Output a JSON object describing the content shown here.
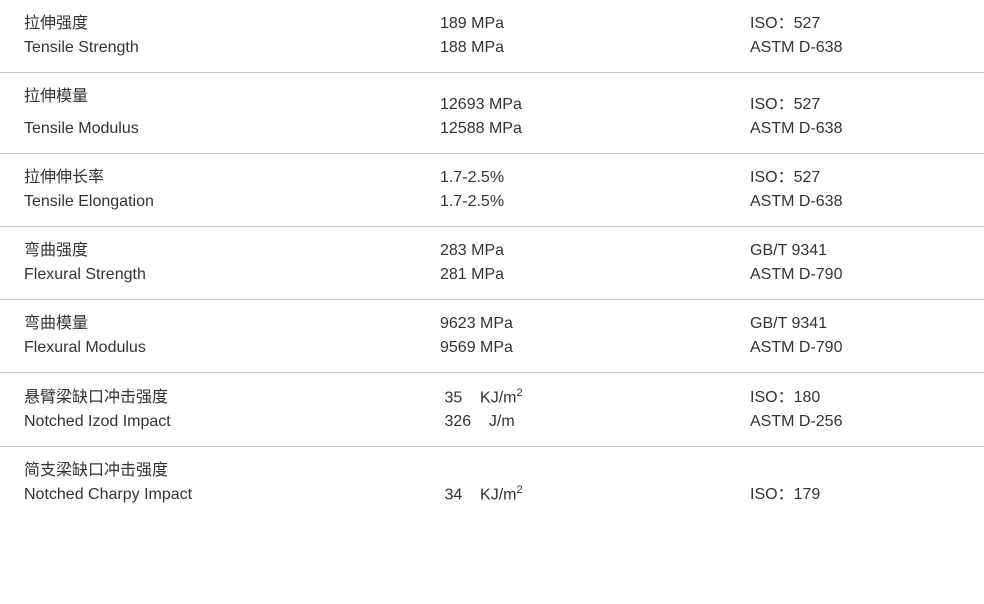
{
  "rows": [
    {
      "label_cn": "拉伸强度",
      "label_en": "Tensile Strength",
      "gap_after_cn": false,
      "values": [
        "189 MPa",
        "188 MPa"
      ],
      "standards": [
        "ISO：527",
        "ASTM D-638"
      ]
    },
    {
      "label_cn": "拉伸模量",
      "label_en": "Tensile Modulus",
      "gap_after_cn": true,
      "values": [
        "12693 MPa",
        "12588 MPa"
      ],
      "standards": [
        "ISO：527",
        "ASTM D-638"
      ]
    },
    {
      "label_cn": "拉伸伸长率",
      "label_en": "Tensile Elongation",
      "gap_after_cn": false,
      "values": [
        "1.7-2.5%",
        "1.7-2.5%"
      ],
      "standards": [
        "ISO：527",
        "ASTM D-638"
      ]
    },
    {
      "label_cn": "弯曲强度",
      "label_en": "Flexural Strength",
      "gap_after_cn": false,
      "values": [
        "283 MPa",
        "281 MPa"
      ],
      "standards": [
        "GB/T 9341",
        "ASTM D-790"
      ]
    },
    {
      "label_cn": "弯曲模量",
      "label_en": "Flexural Modulus",
      "gap_after_cn": false,
      "values": [
        "9623 MPa",
        "9569 MPa"
      ],
      "standards": [
        "GB/T 9341",
        "ASTM D-790"
      ]
    },
    {
      "label_cn": "悬臂梁缺口冲击强度",
      "label_en": "Notched Izod Impact",
      "gap_after_cn": false,
      "values_html": [
        "&nbsp;35&nbsp;&nbsp;&nbsp;&nbsp;KJ/m<sup>2</sup>",
        "&nbsp;326&nbsp;&nbsp;&nbsp;&nbsp;J/m"
      ],
      "standards": [
        "ISO：180",
        "ASTM D-256"
      ]
    },
    {
      "label_cn": "简支梁缺口冲击强度",
      "label_en": "Notched Charpy Impact",
      "gap_after_cn": false,
      "values_html": [
        "&nbsp;34&nbsp;&nbsp;&nbsp;&nbsp;KJ/m<sup>2</sup>"
      ],
      "standards": [
        "ISO：179"
      ]
    }
  ],
  "colors": {
    "text": "#333333",
    "border": "#cccccc",
    "background": "#ffffff"
  }
}
